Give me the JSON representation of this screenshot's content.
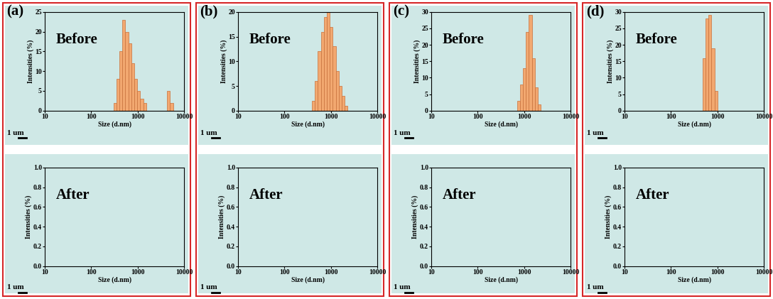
{
  "chart_data": [
    {
      "type": "histogram",
      "title": "(a)",
      "annotations": [
        "Before",
        "1 um"
      ],
      "x_label": "Size (d.nm)",
      "y_label": "Intensities (%)",
      "log": "x",
      "color": "#f2a870",
      "bins": [
        300,
        348,
        404,
        468,
        543,
        630,
        731,
        848,
        983,
        1141,
        1323,
        1535,
        1780,
        2065,
        2396,
        2779,
        3224,
        3740,
        4338,
        5032,
        5837
      ],
      "counts": [
        2,
        8,
        15,
        23,
        20,
        17,
        12,
        8,
        5,
        3,
        2,
        0,
        0,
        0,
        0,
        0,
        0,
        0,
        5,
        2
      ],
      "xlim": [
        10,
        10000
      ],
      "xticks": [
        10,
        100,
        1000,
        10000
      ],
      "ylim": [
        0,
        25
      ],
      "yticks": [
        0,
        5,
        10,
        15,
        20,
        25
      ]
    },
    {
      "type": "histogram",
      "annotations": [
        "After",
        "1 um"
      ],
      "x_label": "Size (d.nm)",
      "y_label": "Intensities (%)",
      "log": "x",
      "xlim": [
        10,
        10000
      ],
      "xticks": [
        10,
        100,
        1000,
        10000
      ],
      "ylim": [
        0,
        1
      ],
      "yticks": [
        {
          "value": 0,
          "label": "0.0"
        },
        0.2,
        0.4,
        0.6,
        0.8,
        {
          "value": 1,
          "label": "1.0"
        }
      ]
    },
    {
      "type": "histogram",
      "title": "(b)",
      "annotations": [
        "Before",
        "1 um"
      ],
      "x_label": "Size (d.nm)",
      "y_label": "Intensities (%)",
      "log": "x",
      "color": "#f2a870",
      "bins": [
        390,
        452,
        525,
        609,
        706,
        819,
        950,
        1102,
        1279,
        1483,
        1720,
        1996,
        2315
      ],
      "counts": [
        2,
        6,
        12,
        16,
        19,
        20,
        17,
        13,
        8,
        5,
        3,
        1
      ],
      "xlim": [
        10,
        10000
      ],
      "xticks": [
        10,
        100,
        1000,
        10000
      ],
      "ylim": [
        0,
        20
      ],
      "yticks": [
        0,
        5,
        10,
        15,
        20
      ]
    },
    {
      "type": "histogram",
      "annotations": [
        "After",
        "1 um"
      ],
      "x_label": "Size (d.nm)",
      "y_label": "Intensities (%)",
      "log": "x",
      "xlim": [
        10,
        10000
      ],
      "xticks": [
        10,
        100,
        1000,
        10000
      ],
      "ylim": [
        0,
        1
      ],
      "yticks": [
        {
          "value": 0,
          "label": "0.0"
        },
        0.2,
        0.4,
        0.6,
        0.8,
        {
          "value": 1,
          "label": "1.0"
        }
      ]
    },
    {
      "type": "histogram",
      "title": "(c)",
      "annotations": [
        "Before",
        "1 um"
      ],
      "x_label": "Size (d.nm)",
      "y_label": "Intensities (%)",
      "log": "x",
      "color": "#f2a870",
      "bins": [
        700,
        812,
        942,
        1093,
        1268,
        1471,
        1706,
        1979,
        2296
      ],
      "counts": [
        3,
        8,
        13,
        24,
        29,
        16,
        7,
        2
      ],
      "xlim": [
        10,
        10000
      ],
      "xticks": [
        10,
        100,
        1000,
        10000
      ],
      "ylim": [
        0,
        30
      ],
      "yticks": [
        0,
        5,
        10,
        15,
        20,
        25,
        30
      ]
    },
    {
      "type": "histogram",
      "annotations": [
        "After",
        "1 um"
      ],
      "x_label": "Size (d.nm)",
      "y_label": "Intensities (%)",
      "log": "x",
      "xlim": [
        10,
        10000
      ],
      "xticks": [
        10,
        100,
        1000,
        10000
      ],
      "ylim": [
        0,
        1
      ],
      "yticks": [
        {
          "value": 0,
          "label": "0.0"
        },
        0.2,
        0.4,
        0.6,
        0.8,
        {
          "value": 1,
          "label": "1.0"
        }
      ]
    },
    {
      "type": "histogram",
      "title": "(d)",
      "annotations": [
        "Before",
        "1 um"
      ],
      "x_label": "Size (d.nm)",
      "y_label": "Intensities (%)",
      "log": "x",
      "color": "#f2a870",
      "bins": [
        480,
        557,
        646,
        749,
        869,
        1008
      ],
      "counts": [
        16,
        28,
        29,
        19,
        6
      ],
      "xlim": [
        10,
        10000
      ],
      "xticks": [
        10,
        100,
        1000,
        10000
      ],
      "ylim": [
        0,
        30
      ],
      "yticks": [
        0,
        5,
        10,
        15,
        20,
        25,
        30
      ]
    },
    {
      "type": "histogram",
      "annotations": [
        "After",
        "1 um"
      ],
      "x_label": "Size (d.nm)",
      "y_label": "Intensities (%)",
      "log": "x",
      "xlim": [
        10,
        10000
      ],
      "xticks": [
        10,
        100,
        1000,
        10000
      ],
      "ylim": [
        0,
        1
      ],
      "yticks": [
        {
          "value": 0,
          "label": "0.0"
        },
        0.2,
        0.4,
        0.6,
        0.8,
        {
          "value": 1,
          "label": "1.0"
        }
      ]
    }
  ]
}
